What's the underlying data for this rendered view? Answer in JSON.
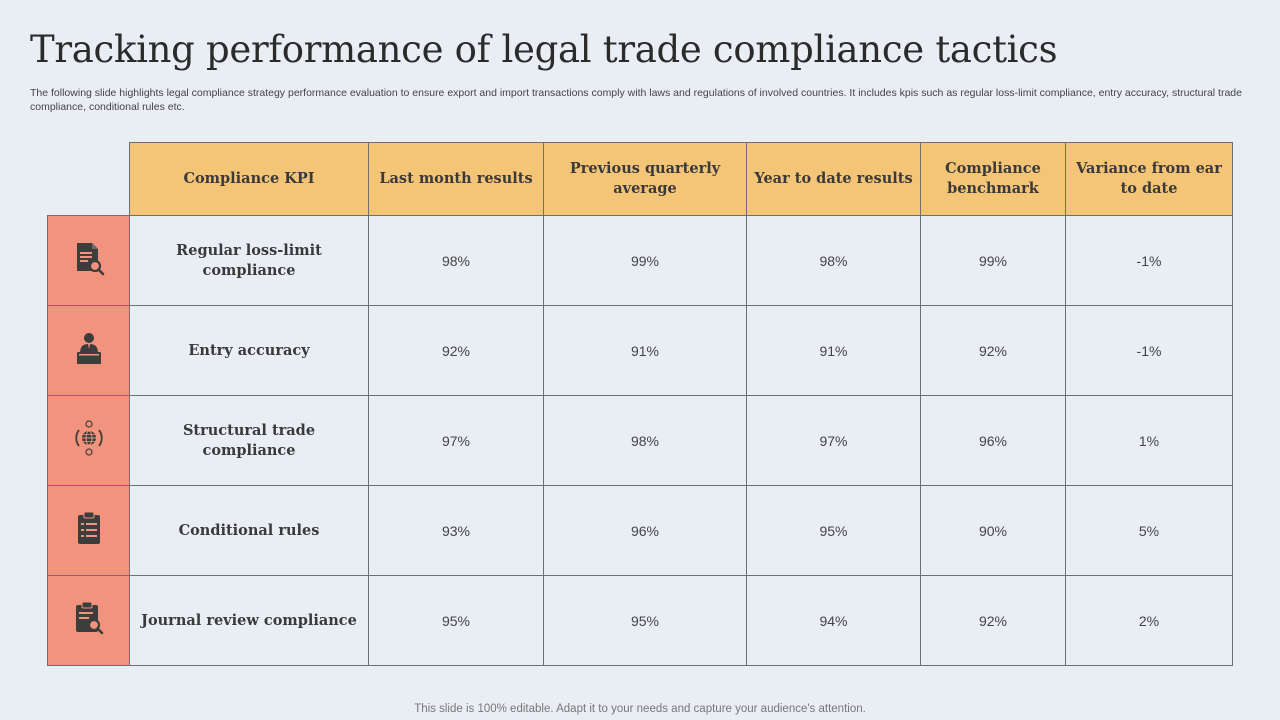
{
  "title": "Tracking performance of legal trade compliance tactics",
  "subtitle": "The following slide highlights legal compliance strategy performance evaluation to ensure export and import transactions comply with laws and regulations of involved countries. It includes kpis such as regular loss-limit compliance, entry accuracy,  structural trade compliance, conditional rules etc.",
  "table": {
    "headers": [
      "Compliance KPI",
      "Last month results",
      "Previous quarterly average",
      "Year to date results",
      "Compliance benchmark",
      "Variance from ear to date"
    ],
    "rows": [
      {
        "icon": "document-search-icon",
        "kpi": "Regular loss-limit compliance",
        "values": [
          "98%",
          "99%",
          "98%",
          "99%",
          "-1%"
        ]
      },
      {
        "icon": "person-laptop-icon",
        "kpi": "Entry accuracy",
        "values": [
          "92%",
          "91%",
          "91%",
          "92%",
          "-1%"
        ]
      },
      {
        "icon": "globe-currency-icon",
        "kpi": "Structural trade compliance",
        "values": [
          "97%",
          "98%",
          "97%",
          "96%",
          "1%"
        ]
      },
      {
        "icon": "clipboard-checklist-icon",
        "kpi": "Conditional rules",
        "values": [
          "93%",
          "96%",
          "95%",
          "90%",
          "5%"
        ]
      },
      {
        "icon": "clipboard-search-icon",
        "kpi": "Journal review compliance",
        "values": [
          "95%",
          "95%",
          "94%",
          "92%",
          "2%"
        ]
      }
    ]
  },
  "colors": {
    "header_bg": "#f5c577",
    "icon_column_bg": "#f2937d",
    "page_bg": "#e9eef5"
  },
  "footer": "This slide is 100% editable. Adapt it to your needs and capture your audience's attention."
}
